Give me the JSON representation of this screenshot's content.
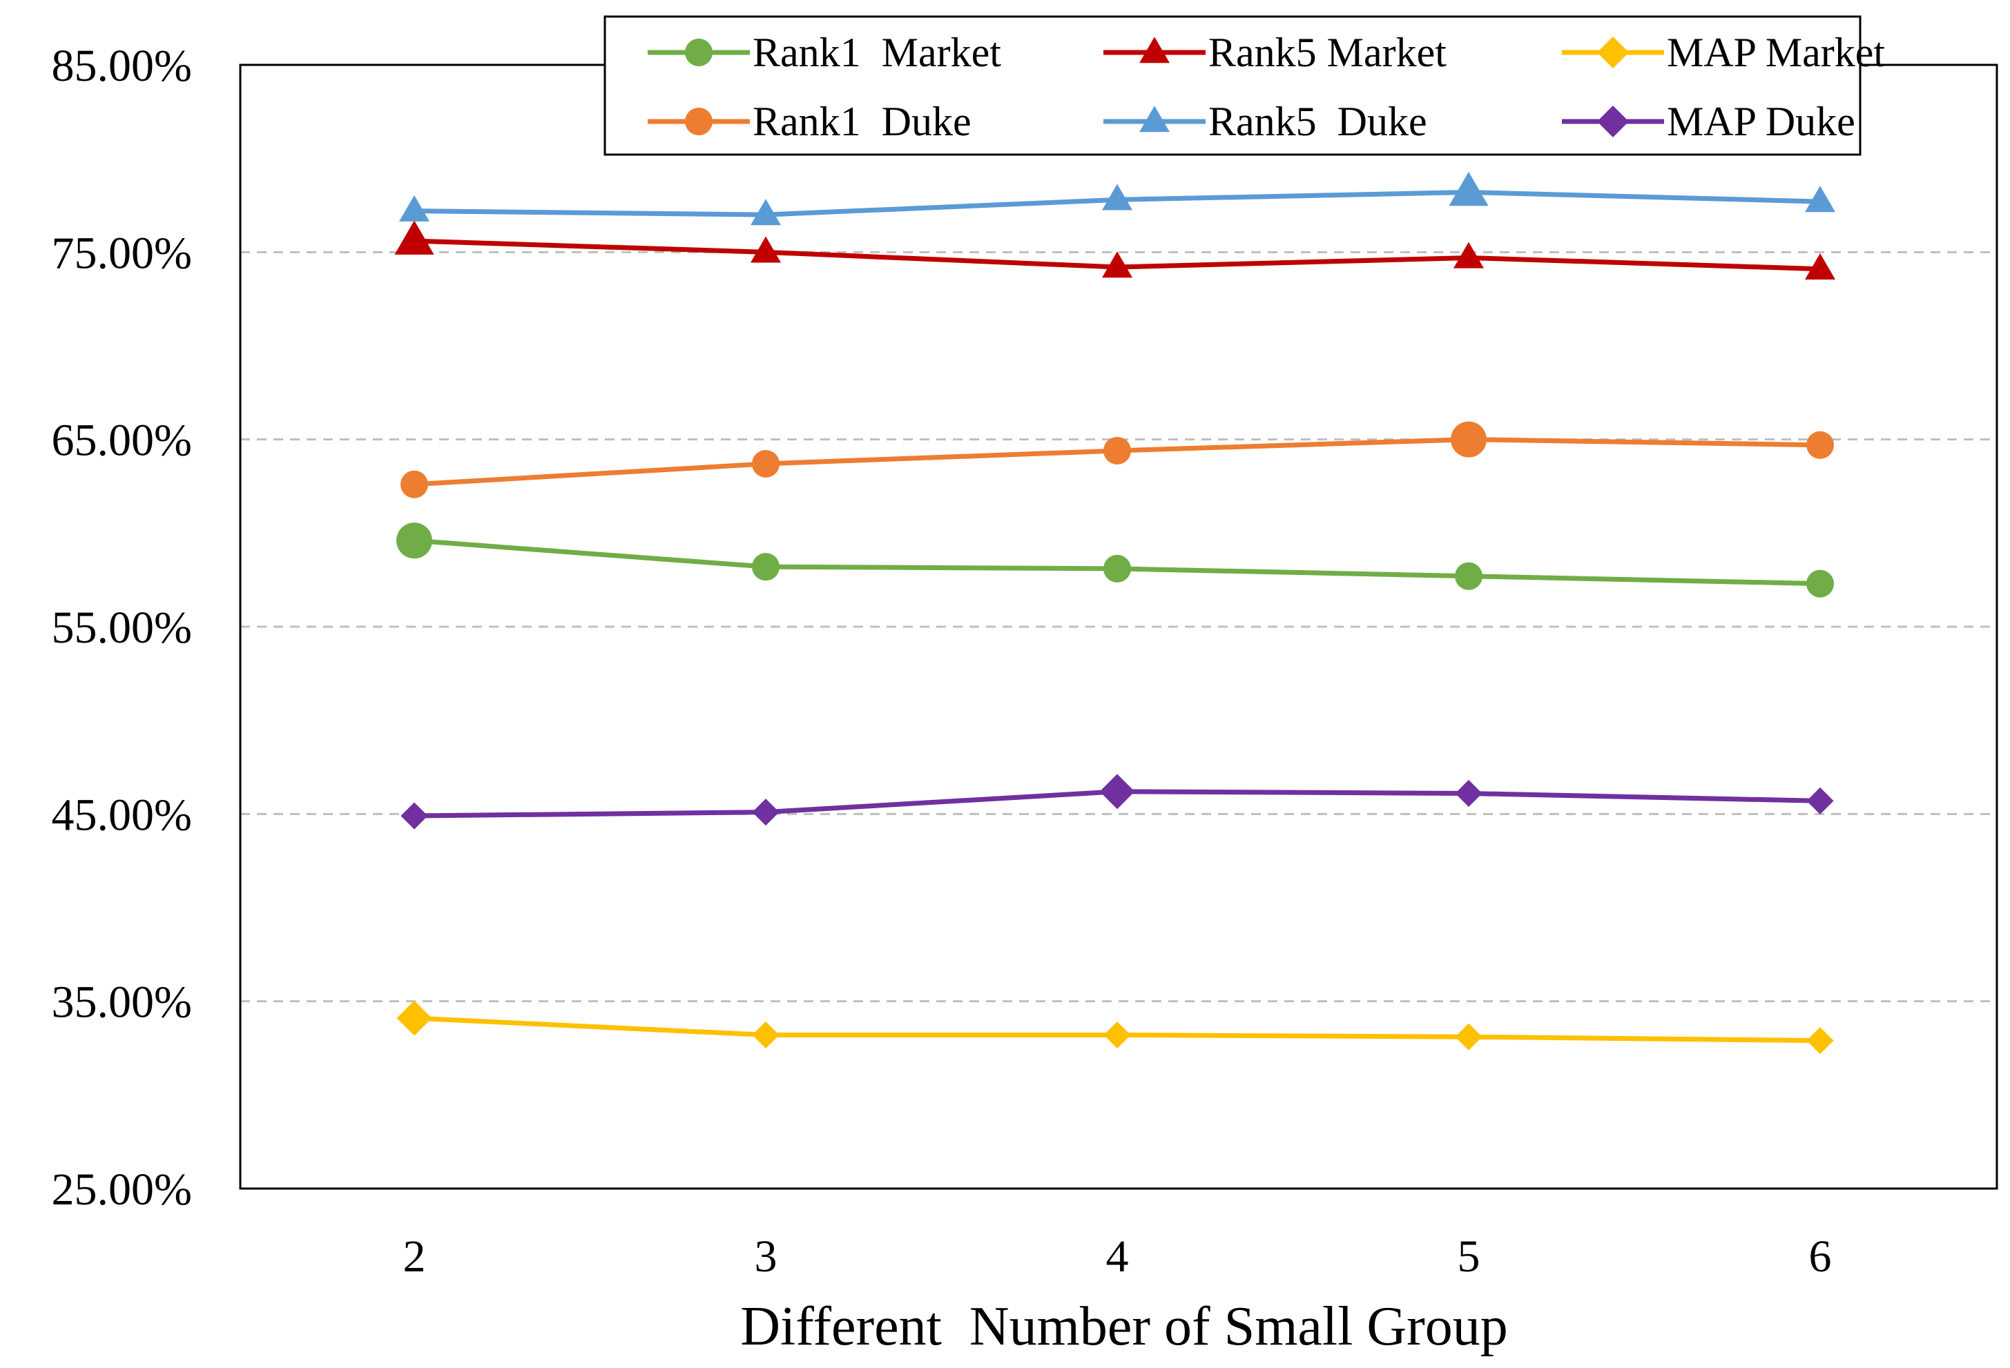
{
  "chart_data": {
    "type": "line",
    "title": "",
    "xlabel": "Different  Number of Small Group",
    "ylabel": "",
    "x": [
      2,
      3,
      4,
      5,
      6
    ],
    "x_tick_labels": [
      "2",
      "3",
      "4",
      "5",
      "6"
    ],
    "ylim": [
      25,
      85
    ],
    "y_ticks": [
      25,
      35,
      45,
      55,
      65,
      75,
      85
    ],
    "y_tick_labels": [
      "25.00%",
      "35.00%",
      "45.00%",
      "55.00%",
      "65.00%",
      "75.00%",
      "85.00%"
    ],
    "grid": true,
    "legend_position": "top-right",
    "series": [
      {
        "name": "Rank1  Market",
        "color": "#70ad47",
        "marker": "circle",
        "values": [
          59.6,
          58.2,
          58.1,
          57.7,
          57.3
        ]
      },
      {
        "name": "Rank5 Market",
        "color": "#c00000",
        "marker": "triangle",
        "values": [
          75.6,
          75.0,
          74.2,
          74.7,
          74.1
        ]
      },
      {
        "name": "MAP Market",
        "color": "#ffc000",
        "marker": "diamond",
        "values": [
          34.1,
          33.2,
          33.2,
          33.1,
          32.9
        ]
      },
      {
        "name": "Rank1  Duke",
        "color": "#ed7d31",
        "marker": "circle",
        "values": [
          62.6,
          63.7,
          64.4,
          65.0,
          64.7
        ]
      },
      {
        "name": "Rank5  Duke",
        "color": "#5b9bd5",
        "marker": "triangle",
        "values": [
          77.2,
          77.0,
          77.8,
          78.2,
          77.7
        ]
      },
      {
        "name": "MAP Duke",
        "color": "#7030a0",
        "marker": "diamond",
        "values": [
          44.9,
          45.1,
          46.2,
          46.1,
          45.7
        ]
      }
    ]
  }
}
